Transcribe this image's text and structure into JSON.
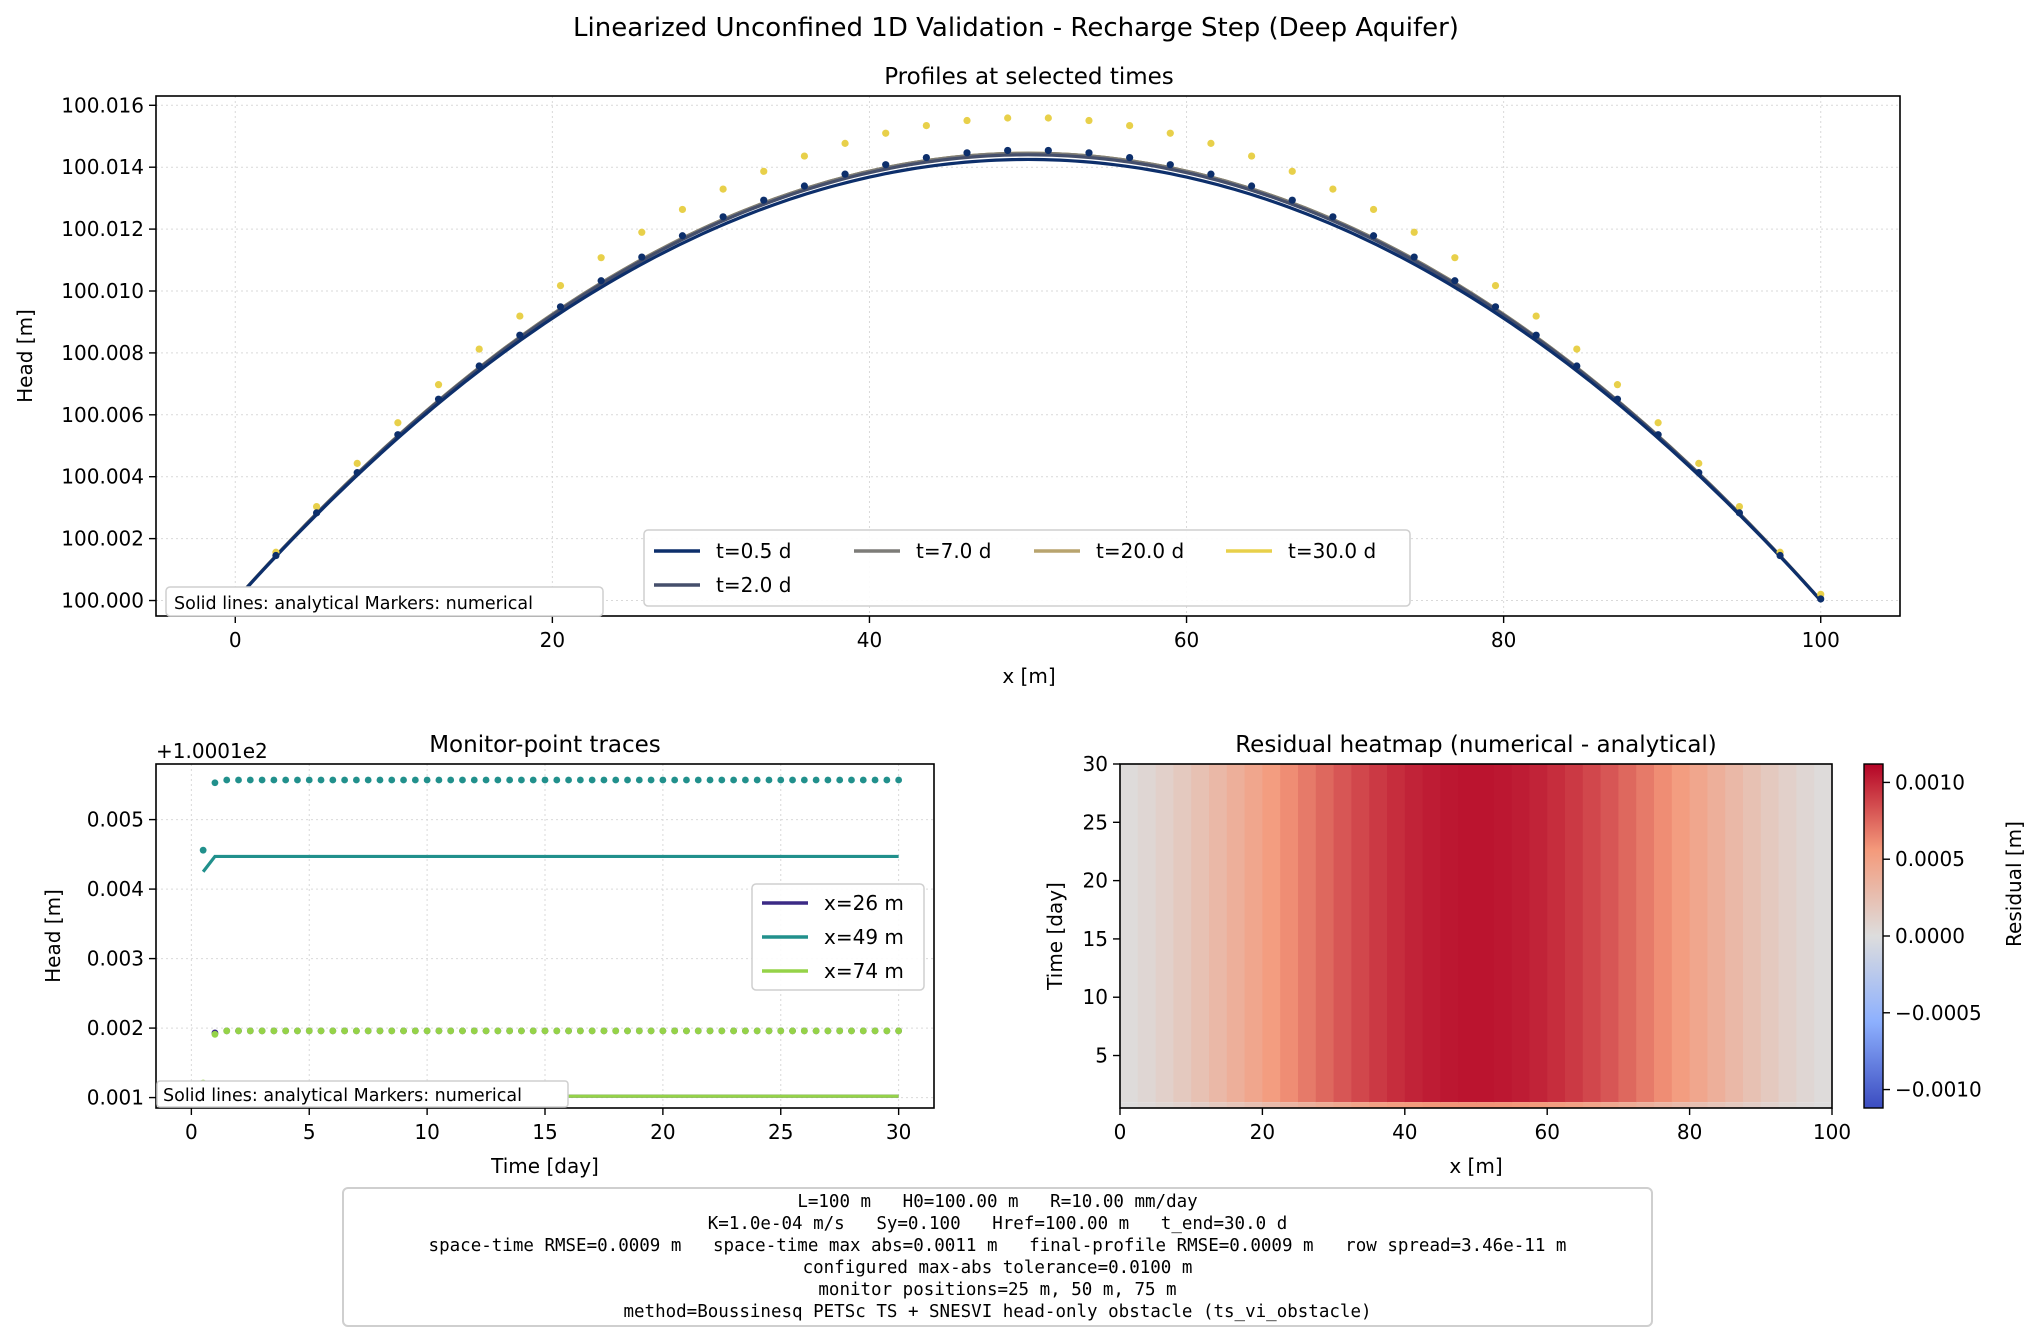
{
  "suptitle": "Linearized Unconfined 1D Validation - Recharge Step (Deep Aquifer)",
  "colors": {
    "t0_5": "#0d2f6b",
    "t2_0": "#454f6b",
    "t7_0": "#7d7c78",
    "t20_0": "#b8a46e",
    "t30_0": "#e8d04a",
    "x26": "#3b2a85",
    "x49": "#21908c",
    "x74": "#95d348"
  },
  "chart_data": [
    {
      "type": "line",
      "title": "Profiles at selected times",
      "xlabel": "x [m]",
      "ylabel": "Head [m]",
      "xlim": [
        -5,
        105
      ],
      "ylim": [
        99.9995,
        100.0163
      ],
      "xticks": [
        "0",
        "20",
        "40",
        "60",
        "80",
        "100"
      ],
      "yticks": [
        "100.000",
        "100.002",
        "100.004",
        "100.006",
        "100.008",
        "100.010",
        "100.012",
        "100.014",
        "100.016"
      ],
      "grid": true,
      "legend_position": "bottom-center",
      "note": "Solid lines: analytical   Markers: numerical",
      "x": [
        0,
        2.564,
        5.128,
        7.692,
        10.256,
        12.821,
        15.385,
        17.949,
        20.513,
        23.077,
        25.641,
        28.205,
        30.769,
        33.333,
        35.897,
        38.462,
        41.026,
        43.59,
        46.154,
        48.718,
        51.282,
        53.846,
        56.41,
        58.974,
        61.538,
        64.103,
        66.667,
        69.231,
        71.795,
        74.359,
        76.923,
        79.487,
        82.051,
        84.615,
        87.179,
        89.744,
        92.308,
        94.872,
        97.436,
        100
      ],
      "series": [
        {
          "name": "t=0.5 d",
          "analytical_peak": 100.01425,
          "numerical_peak": 100.01455
        },
        {
          "name": "t=2.0 d",
          "analytical_peak": 100.0144,
          "numerical_peak": 100.01455
        },
        {
          "name": "t=7.0 d",
          "analytical_peak": 100.01445,
          "numerical_peak": 100.01455
        },
        {
          "name": "t=20.0 d",
          "analytical_peak": 100.01445,
          "numerical_peak": 100.01455
        },
        {
          "name": "t=30.0 d",
          "analytical_peak": 100.01445,
          "numerical_peak": 100.0156
        }
      ]
    },
    {
      "type": "line",
      "title": "Monitor-point traces",
      "xlabel": "Time [day]",
      "ylabel": "Head [m]",
      "offset_label": "+1.0001e2",
      "xlim": [
        -1.5,
        31.5
      ],
      "ylim": [
        0.00085,
        0.0058
      ],
      "xticks": [
        "0",
        "5",
        "10",
        "15",
        "20",
        "25",
        "30"
      ],
      "yticks": [
        "0.001",
        "0.002",
        "0.003",
        "0.004",
        "0.005"
      ],
      "grid": true,
      "legend_position": "center-right",
      "note": "Solid lines: analytical   Markers: numerical",
      "series": [
        {
          "name": "x=26 m",
          "analytical": [
            0.00102,
            0.00102
          ],
          "numerical": [
            0.00113,
            0.00193,
            0.00196
          ]
        },
        {
          "name": "x=49 m",
          "analytical": [
            0.00425,
            0.00447
          ],
          "numerical": [
            0.00456,
            0.00553,
            0.00557
          ]
        },
        {
          "name": "x=74 m",
          "analytical": [
            0.00102,
            0.00102
          ],
          "numerical": [
            0.00121,
            0.00191,
            0.00196
          ]
        }
      ]
    },
    {
      "type": "heatmap",
      "title": "Residual heatmap (numerical - analytical)",
      "xlabel": "x [m]",
      "ylabel": "Time [day]",
      "xlim": [
        0,
        100
      ],
      "ylim": [
        0.5,
        30
      ],
      "xticks": [
        "0",
        "20",
        "40",
        "60",
        "80",
        "100"
      ],
      "yticks": [
        "5",
        "10",
        "15",
        "20",
        "25",
        "30"
      ],
      "colorbar_label": "Residual [m]",
      "colorbar_ticks": [
        "−0.0010",
        "−0.0005",
        "0.0000",
        "0.0005",
        "0.0010"
      ],
      "vmin": -0.00112,
      "vmax": 0.00112,
      "colormap": "coolwarm"
    }
  ],
  "info_lines": [
    "L=100 m   H0=100.00 m   R=10.00 mm/day",
    "K=1.0e-04 m/s   Sy=0.100   Href=100.00 m   t_end=30.0 d",
    "space-time RMSE=0.0009 m   space-time max abs=0.0011 m   final-profile RMSE=0.0009 m   row spread=3.46e-11 m",
    "configured max-abs tolerance=0.0100 m",
    "monitor positions=25 m, 50 m, 75 m",
    "method=Boussinesq PETSc TS + SNESVI head-only obstacle (ts_vi_obstacle)"
  ]
}
